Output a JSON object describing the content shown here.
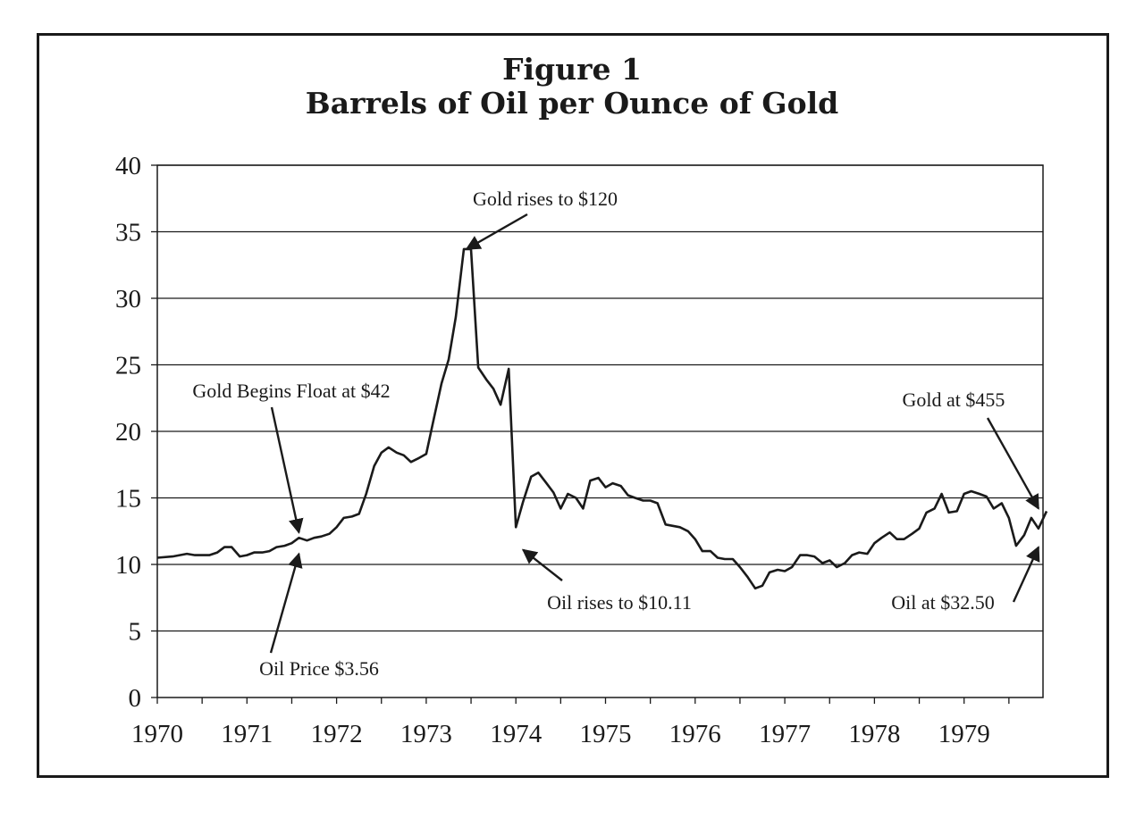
{
  "chart_data": {
    "type": "line",
    "title": "Figure 1",
    "subtitle": "Barrels of Oil per Ounce of Gold",
    "xlabel": "",
    "ylabel": "",
    "xlim": [
      1970,
      1979.92
    ],
    "ylim": [
      0,
      40
    ],
    "y_ticks": [
      0,
      5,
      10,
      15,
      20,
      25,
      30,
      35,
      40
    ],
    "x_ticks": [
      1970,
      1971,
      1972,
      1973,
      1974,
      1975,
      1976,
      1977,
      1978,
      1979
    ],
    "grid": "horizontal",
    "legend": "none",
    "line_color": "#1a1a1a",
    "series": [
      {
        "values": [
          [
            1970.0,
            10.5
          ],
          [
            1970.17,
            10.6
          ],
          [
            1970.25,
            10.7
          ],
          [
            1970.33,
            10.8
          ],
          [
            1970.42,
            10.7
          ],
          [
            1970.5,
            10.7
          ],
          [
            1970.58,
            10.7
          ],
          [
            1970.67,
            10.9
          ],
          [
            1970.75,
            11.3
          ],
          [
            1970.83,
            11.3
          ],
          [
            1970.92,
            10.6
          ],
          [
            1971.0,
            10.7
          ],
          [
            1971.08,
            10.9
          ],
          [
            1971.17,
            10.9
          ],
          [
            1971.25,
            11.0
          ],
          [
            1971.33,
            11.3
          ],
          [
            1971.42,
            11.4
          ],
          [
            1971.5,
            11.6
          ],
          [
            1971.58,
            12.0
          ],
          [
            1971.67,
            11.8
          ],
          [
            1971.75,
            12.0
          ],
          [
            1971.83,
            12.1
          ],
          [
            1971.92,
            12.3
          ],
          [
            1972.0,
            12.8
          ],
          [
            1972.08,
            13.5
          ],
          [
            1972.17,
            13.6
          ],
          [
            1972.25,
            13.8
          ],
          [
            1972.33,
            15.3
          ],
          [
            1972.42,
            17.4
          ],
          [
            1972.5,
            18.4
          ],
          [
            1972.58,
            18.8
          ],
          [
            1972.67,
            18.4
          ],
          [
            1972.75,
            18.2
          ],
          [
            1972.83,
            17.7
          ],
          [
            1972.92,
            18.0
          ],
          [
            1973.0,
            18.3
          ],
          [
            1973.08,
            20.8
          ],
          [
            1973.17,
            23.6
          ],
          [
            1973.25,
            25.4
          ],
          [
            1973.33,
            28.6
          ],
          [
            1973.42,
            33.7
          ],
          [
            1973.5,
            33.7
          ],
          [
            1973.58,
            24.8
          ],
          [
            1973.67,
            23.9
          ],
          [
            1973.75,
            23.2
          ],
          [
            1973.83,
            22.0
          ],
          [
            1973.92,
            24.7
          ],
          [
            1974.0,
            12.8
          ],
          [
            1974.08,
            14.7
          ],
          [
            1974.17,
            16.6
          ],
          [
            1974.25,
            16.9
          ],
          [
            1974.33,
            16.2
          ],
          [
            1974.42,
            15.4
          ],
          [
            1974.5,
            14.2
          ],
          [
            1974.58,
            15.3
          ],
          [
            1974.67,
            15.0
          ],
          [
            1974.75,
            14.2
          ],
          [
            1974.83,
            16.3
          ],
          [
            1974.92,
            16.5
          ],
          [
            1975.0,
            15.8
          ],
          [
            1975.08,
            16.1
          ],
          [
            1975.17,
            15.9
          ],
          [
            1975.25,
            15.2
          ],
          [
            1975.33,
            15.0
          ],
          [
            1975.42,
            14.8
          ],
          [
            1975.5,
            14.8
          ],
          [
            1975.58,
            14.6
          ],
          [
            1975.67,
            13.0
          ],
          [
            1975.75,
            12.9
          ],
          [
            1975.83,
            12.8
          ],
          [
            1975.92,
            12.5
          ],
          [
            1976.0,
            11.9
          ],
          [
            1976.08,
            11.0
          ],
          [
            1976.17,
            11.0
          ],
          [
            1976.25,
            10.5
          ],
          [
            1976.33,
            10.4
          ],
          [
            1976.42,
            10.4
          ],
          [
            1976.5,
            9.8
          ],
          [
            1976.58,
            9.1
          ],
          [
            1976.67,
            8.2
          ],
          [
            1976.75,
            8.4
          ],
          [
            1976.83,
            9.4
          ],
          [
            1976.92,
            9.6
          ],
          [
            1977.0,
            9.5
          ],
          [
            1977.08,
            9.8
          ],
          [
            1977.17,
            10.7
          ],
          [
            1977.25,
            10.7
          ],
          [
            1977.33,
            10.6
          ],
          [
            1977.42,
            10.1
          ],
          [
            1977.5,
            10.3
          ],
          [
            1977.58,
            9.8
          ],
          [
            1977.67,
            10.1
          ],
          [
            1977.75,
            10.7
          ],
          [
            1977.83,
            10.9
          ],
          [
            1977.92,
            10.8
          ],
          [
            1978.0,
            11.6
          ],
          [
            1978.08,
            12.0
          ],
          [
            1978.17,
            12.4
          ],
          [
            1978.25,
            11.9
          ],
          [
            1978.33,
            11.9
          ],
          [
            1978.42,
            12.3
          ],
          [
            1978.5,
            12.7
          ],
          [
            1978.58,
            13.9
          ],
          [
            1978.67,
            14.2
          ],
          [
            1978.75,
            15.3
          ],
          [
            1978.83,
            13.9
          ],
          [
            1978.92,
            14.0
          ],
          [
            1979.0,
            15.3
          ],
          [
            1979.08,
            15.5
          ],
          [
            1979.17,
            15.3
          ],
          [
            1979.25,
            15.1
          ],
          [
            1979.33,
            14.2
          ],
          [
            1979.42,
            14.6
          ],
          [
            1979.5,
            13.5
          ],
          [
            1979.58,
            11.4
          ],
          [
            1979.67,
            12.2
          ],
          [
            1979.75,
            13.5
          ],
          [
            1979.83,
            12.7
          ],
          [
            1979.92,
            14.0
          ]
        ]
      }
    ],
    "annotations": [
      {
        "text": "Gold rises to $120",
        "x": 1973.45,
        "y": 33.7
      },
      {
        "text": "Gold Begins Float at $42",
        "x": 1971.58,
        "y": 12.4
      },
      {
        "text": "Oil Price $3.56",
        "x": 1971.58,
        "y": 10.8
      },
      {
        "text": "Oil rises to $10.11",
        "x": 1974.08,
        "y": 11.1
      },
      {
        "text": "Gold at $455",
        "x": 1979.83,
        "y": 14.2
      },
      {
        "text": "Oil at $32.50",
        "x": 1979.83,
        "y": 11.3
      }
    ]
  }
}
